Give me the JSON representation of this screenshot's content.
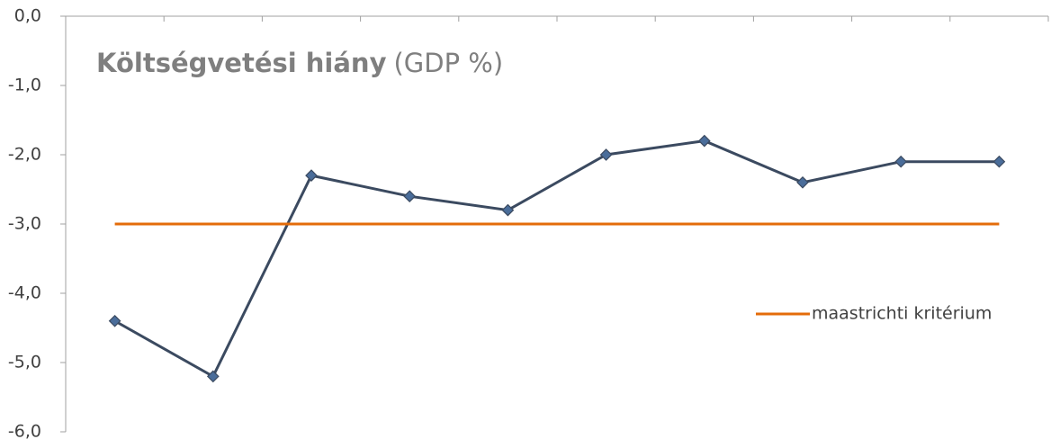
{
  "chart_data": {
    "type": "line",
    "title": "Költségvetési hiány",
    "subtitle": "(GDP %)",
    "categories": [
      null,
      null,
      null,
      null,
      null,
      null,
      null,
      null,
      null,
      null
    ],
    "series": [
      {
        "color": "#3b4a60",
        "marker_color": "#4a6d9a",
        "values": [
          -4.4,
          -5.2,
          -2.3,
          -2.6,
          -2.8,
          -2.0,
          -1.8,
          -2.4,
          -2.1,
          -2.1
        ]
      },
      {
        "name": "maastrichti kritérium",
        "color": "#e46c0a",
        "values": [
          -3.0,
          -3.0,
          -3.0,
          -3.0,
          -3.0,
          -3.0,
          -3.0,
          -3.0,
          -3.0,
          -3.0
        ]
      }
    ],
    "ylim": [
      -6,
      0
    ],
    "yticks": [
      {
        "value": 0,
        "label": "0,0"
      },
      {
        "value": -1,
        "label": "-1,0"
      },
      {
        "value": -2,
        "label": "-2,0"
      },
      {
        "value": -3,
        "label": "-3,0"
      },
      {
        "value": -4,
        "label": "-4,0"
      },
      {
        "value": -5,
        "label": "-5,0"
      },
      {
        "value": -6,
        "label": "-6,0"
      }
    ],
    "grid": false,
    "legend": "right"
  }
}
